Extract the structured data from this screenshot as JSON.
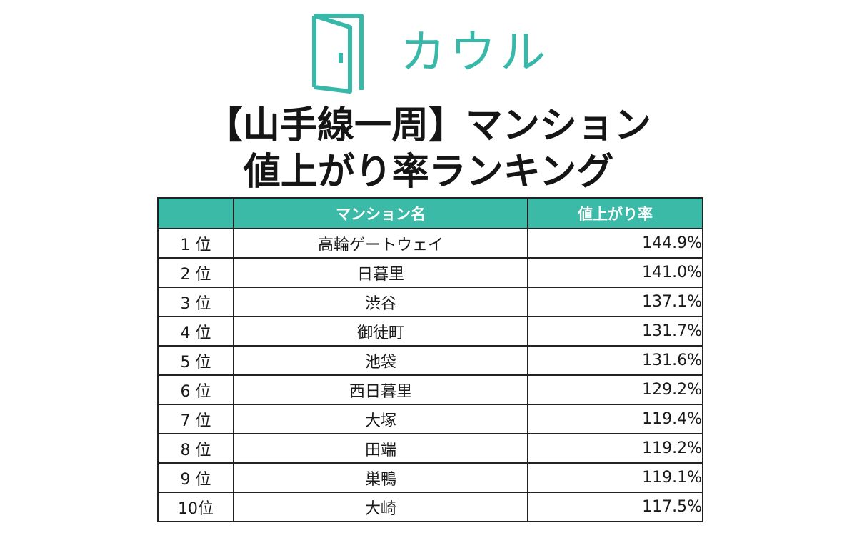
{
  "brand": {
    "name": "カウル",
    "color": "#38b8a8",
    "icon": "door-icon"
  },
  "title": {
    "line1": "【山手線一周】マンション",
    "line2": "値上がり率ランキング"
  },
  "table": {
    "header_color": "#3cbaa8",
    "columns": [
      "",
      "マンション名",
      "値上がり率"
    ],
    "rows": [
      {
        "rank": "1 位",
        "name": "高輪ゲートウェイ",
        "rate": "144.9%"
      },
      {
        "rank": "2 位",
        "name": "日暮里",
        "rate": "141.0%"
      },
      {
        "rank": "3 位",
        "name": "渋谷",
        "rate": "137.1%"
      },
      {
        "rank": "4 位",
        "name": "御徒町",
        "rate": "131.7%"
      },
      {
        "rank": "5 位",
        "name": "池袋",
        "rate": "131.6%"
      },
      {
        "rank": "6 位",
        "name": "西日暮里",
        "rate": "129.2%"
      },
      {
        "rank": "7 位",
        "name": "大塚",
        "rate": "119.4%"
      },
      {
        "rank": "8 位",
        "name": "田端",
        "rate": "119.2%"
      },
      {
        "rank": "9 位",
        "name": "巣鴨",
        "rate": "119.1%"
      },
      {
        "rank": "10位",
        "name": "大崎",
        "rate": "117.5%"
      }
    ]
  }
}
